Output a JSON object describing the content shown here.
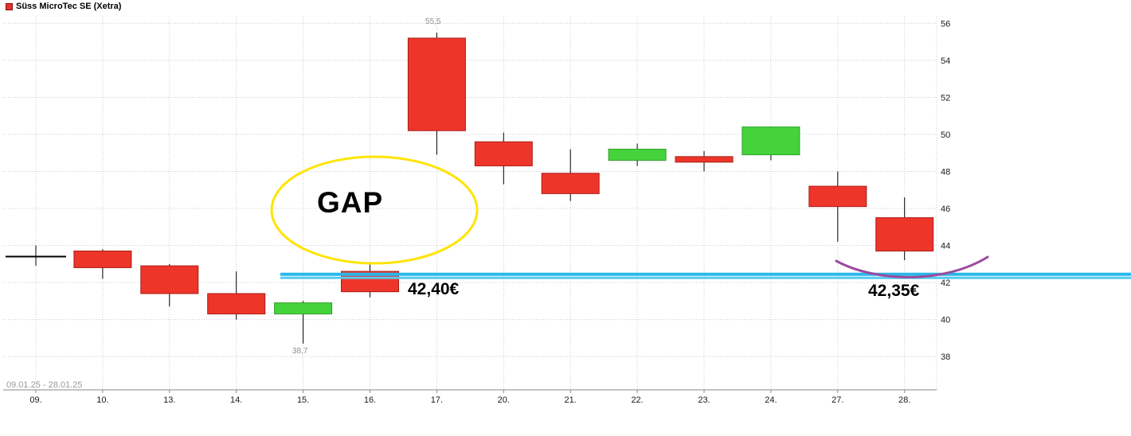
{
  "header": {
    "title": "Süss MicroTec SE (Xetra)",
    "legend_color": "#e8312a"
  },
  "footer": {
    "date_range": "09.01.25 - 28.01.25"
  },
  "annotations": {
    "gap_label": "GAP",
    "price_left": "42,40€",
    "price_right": "42,35€",
    "high_label": "55,5",
    "low_label": "38,7",
    "colors": {
      "gap_ellipse": "#ffe400",
      "support_line": "#29b7ea",
      "support_line_secondary": "#55c9f0",
      "bounce_curve": "#9c4a9e"
    }
  },
  "chart_data": {
    "type": "candlestick",
    "title": "Süss MicroTec SE (Xetra)",
    "categories": [
      "09.",
      "10.",
      "13.",
      "14.",
      "15.",
      "16.",
      "17.",
      "20.",
      "21.",
      "22.",
      "23.",
      "24.",
      "27.",
      "28."
    ],
    "y_ticks": [
      38,
      40,
      42,
      44,
      46,
      48,
      50,
      52,
      54,
      56
    ],
    "ylim": [
      36.2,
      56.4
    ],
    "grid": "dotted",
    "up_color": "#45d33c",
    "down_color": "#ee352a",
    "up_stroke": "#2f9e27",
    "down_stroke": "#a91d15",
    "support_level": 42.4,
    "ohlc": [
      {
        "date": "09.",
        "open": 43.4,
        "high": 44.0,
        "low": 42.9,
        "close": 43.4,
        "color": "doji"
      },
      {
        "date": "10.",
        "open": 43.7,
        "high": 43.8,
        "low": 42.2,
        "close": 42.8,
        "color": "red"
      },
      {
        "date": "13.",
        "open": 42.9,
        "high": 43.0,
        "low": 40.7,
        "close": 41.4,
        "color": "red"
      },
      {
        "date": "14.",
        "open": 41.4,
        "high": 42.6,
        "low": 40.0,
        "close": 40.3,
        "color": "red"
      },
      {
        "date": "15.",
        "open": 40.3,
        "high": 41.0,
        "low": 38.7,
        "close": 40.9,
        "color": "green"
      },
      {
        "date": "16.",
        "open": 42.6,
        "high": 43.1,
        "low": 41.2,
        "close": 41.5,
        "color": "red"
      },
      {
        "date": "17.",
        "open": 55.2,
        "high": 55.5,
        "low": 48.9,
        "close": 50.2,
        "color": "red"
      },
      {
        "date": "20.",
        "open": 49.6,
        "high": 50.1,
        "low": 47.3,
        "close": 48.3,
        "color": "red"
      },
      {
        "date": "21.",
        "open": 47.9,
        "high": 49.2,
        "low": 46.4,
        "close": 46.8,
        "color": "red"
      },
      {
        "date": "22.",
        "open": 48.6,
        "high": 49.5,
        "low": 48.3,
        "close": 49.2,
        "color": "green"
      },
      {
        "date": "23.",
        "open": 48.8,
        "high": 49.1,
        "low": 48.0,
        "close": 48.5,
        "color": "red"
      },
      {
        "date": "24.",
        "open": 48.9,
        "high": 50.4,
        "low": 48.6,
        "close": 50.4,
        "color": "green"
      },
      {
        "date": "27.",
        "open": 47.2,
        "high": 48.0,
        "low": 44.2,
        "close": 46.1,
        "color": "red"
      },
      {
        "date": "28.",
        "open": 45.5,
        "high": 46.6,
        "low": 43.2,
        "close": 43.7,
        "color": "red"
      }
    ]
  }
}
